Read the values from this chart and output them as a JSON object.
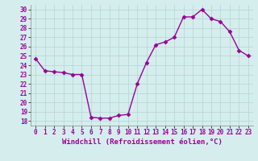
{
  "x": [
    0,
    1,
    2,
    3,
    4,
    5,
    6,
    7,
    8,
    9,
    10,
    11,
    12,
    13,
    14,
    15,
    16,
    17,
    18,
    19,
    20,
    21,
    22,
    23
  ],
  "y": [
    24.7,
    23.4,
    23.3,
    23.2,
    23.0,
    23.0,
    18.4,
    18.3,
    18.3,
    18.6,
    18.7,
    22.0,
    24.3,
    26.2,
    26.5,
    27.0,
    29.2,
    29.2,
    30.0,
    29.0,
    28.7,
    27.6,
    25.6,
    25.0
  ],
  "line_color": "#990099",
  "marker": "D",
  "marker_size": 2.5,
  "linewidth": 1.0,
  "xlabel": "Windchill (Refroidissement éolien,°C)",
  "xlim": [
    -0.5,
    23.5
  ],
  "ylim": [
    17.5,
    30.5
  ],
  "yticks": [
    18,
    19,
    20,
    21,
    22,
    23,
    24,
    25,
    26,
    27,
    28,
    29,
    30
  ],
  "xticks": [
    0,
    1,
    2,
    3,
    4,
    5,
    6,
    7,
    8,
    9,
    10,
    11,
    12,
    13,
    14,
    15,
    16,
    17,
    18,
    19,
    20,
    21,
    22,
    23
  ],
  "bg_color": "#d5eeed",
  "grid_color": "#b8d8d5",
  "tick_label_fontsize": 5.5,
  "xlabel_fontsize": 6.5
}
